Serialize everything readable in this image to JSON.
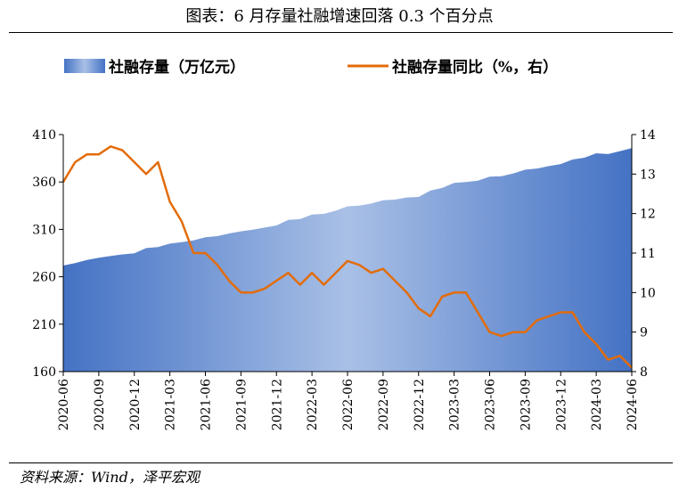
{
  "figure": {
    "title": "图表：6 月存量社融增速回落 0.3 个百分点",
    "source": "资料来源：Wind，泽平宏观"
  },
  "colors": {
    "area_dark": "#4472C4",
    "area_light": "#A9C0E6",
    "line": "#E36C0A",
    "axis": "#000000"
  },
  "chart_data": {
    "type": "area+line",
    "x_labels": [
      "2020-06",
      "2020-09",
      "2020-12",
      "2021-03",
      "2021-06",
      "2021-09",
      "2021-12",
      "2022-03",
      "2022-06",
      "2022-09",
      "2022-12",
      "2023-03",
      "2023-06",
      "2023-09",
      "2023-12",
      "2024-03",
      "2024-06"
    ],
    "x": [
      "2020-06",
      "2020-07",
      "2020-08",
      "2020-09",
      "2020-10",
      "2020-11",
      "2020-12",
      "2021-01",
      "2021-02",
      "2021-03",
      "2021-04",
      "2021-05",
      "2021-06",
      "2021-07",
      "2021-08",
      "2021-09",
      "2021-10",
      "2021-11",
      "2021-12",
      "2022-01",
      "2022-02",
      "2022-03",
      "2022-04",
      "2022-05",
      "2022-06",
      "2022-07",
      "2022-08",
      "2022-09",
      "2022-10",
      "2022-11",
      "2022-12",
      "2023-01",
      "2023-02",
      "2023-03",
      "2023-04",
      "2023-05",
      "2023-06",
      "2023-07",
      "2023-08",
      "2023-09",
      "2023-10",
      "2023-11",
      "2023-12",
      "2024-01",
      "2024-02",
      "2024-03",
      "2024-04",
      "2024-05",
      "2024-06"
    ],
    "series": [
      {
        "name": "社融存量（万亿元）",
        "type": "area",
        "axis": "left",
        "values": [
          271.8,
          274.5,
          277.8,
          280.1,
          281.9,
          283.6,
          284.8,
          290.3,
          291.4,
          295.0,
          296.6,
          298.3,
          301.6,
          302.9,
          305.7,
          307.9,
          309.6,
          311.9,
          314.1,
          320.0,
          320.8,
          325.6,
          326.4,
          329.6,
          334.3,
          335.0,
          337.3,
          340.7,
          341.4,
          343.6,
          344.2,
          350.9,
          353.7,
          359.0,
          359.9,
          361.4,
          365.5,
          366.0,
          369.0,
          373.0,
          374.2,
          376.7,
          378.9,
          383.7,
          385.6,
          390.3,
          389.4,
          392.5,
          395.7
        ]
      },
      {
        "name": "社融存量同比（%，右）",
        "type": "line",
        "axis": "right",
        "values": [
          12.8,
          13.3,
          13.5,
          13.5,
          13.7,
          13.6,
          13.3,
          13.0,
          13.3,
          12.3,
          11.8,
          11.0,
          11.0,
          10.7,
          10.3,
          10.0,
          10.0,
          10.1,
          10.3,
          10.5,
          10.2,
          10.5,
          10.2,
          10.5,
          10.8,
          10.7,
          10.5,
          10.6,
          10.3,
          10.0,
          9.6,
          9.4,
          9.9,
          10.0,
          10.0,
          9.5,
          9.0,
          8.9,
          9.0,
          9.0,
          9.3,
          9.4,
          9.5,
          9.5,
          9.0,
          8.7,
          8.3,
          8.4,
          8.1
        ]
      }
    ],
    "y_left": {
      "min": 160,
      "max": 410,
      "ticks": [
        160,
        210,
        260,
        310,
        360,
        410
      ]
    },
    "y_right": {
      "min": 8,
      "max": 14,
      "ticks": [
        8,
        9,
        10,
        11,
        12,
        13,
        14
      ]
    },
    "legend": {
      "position": "top"
    }
  }
}
